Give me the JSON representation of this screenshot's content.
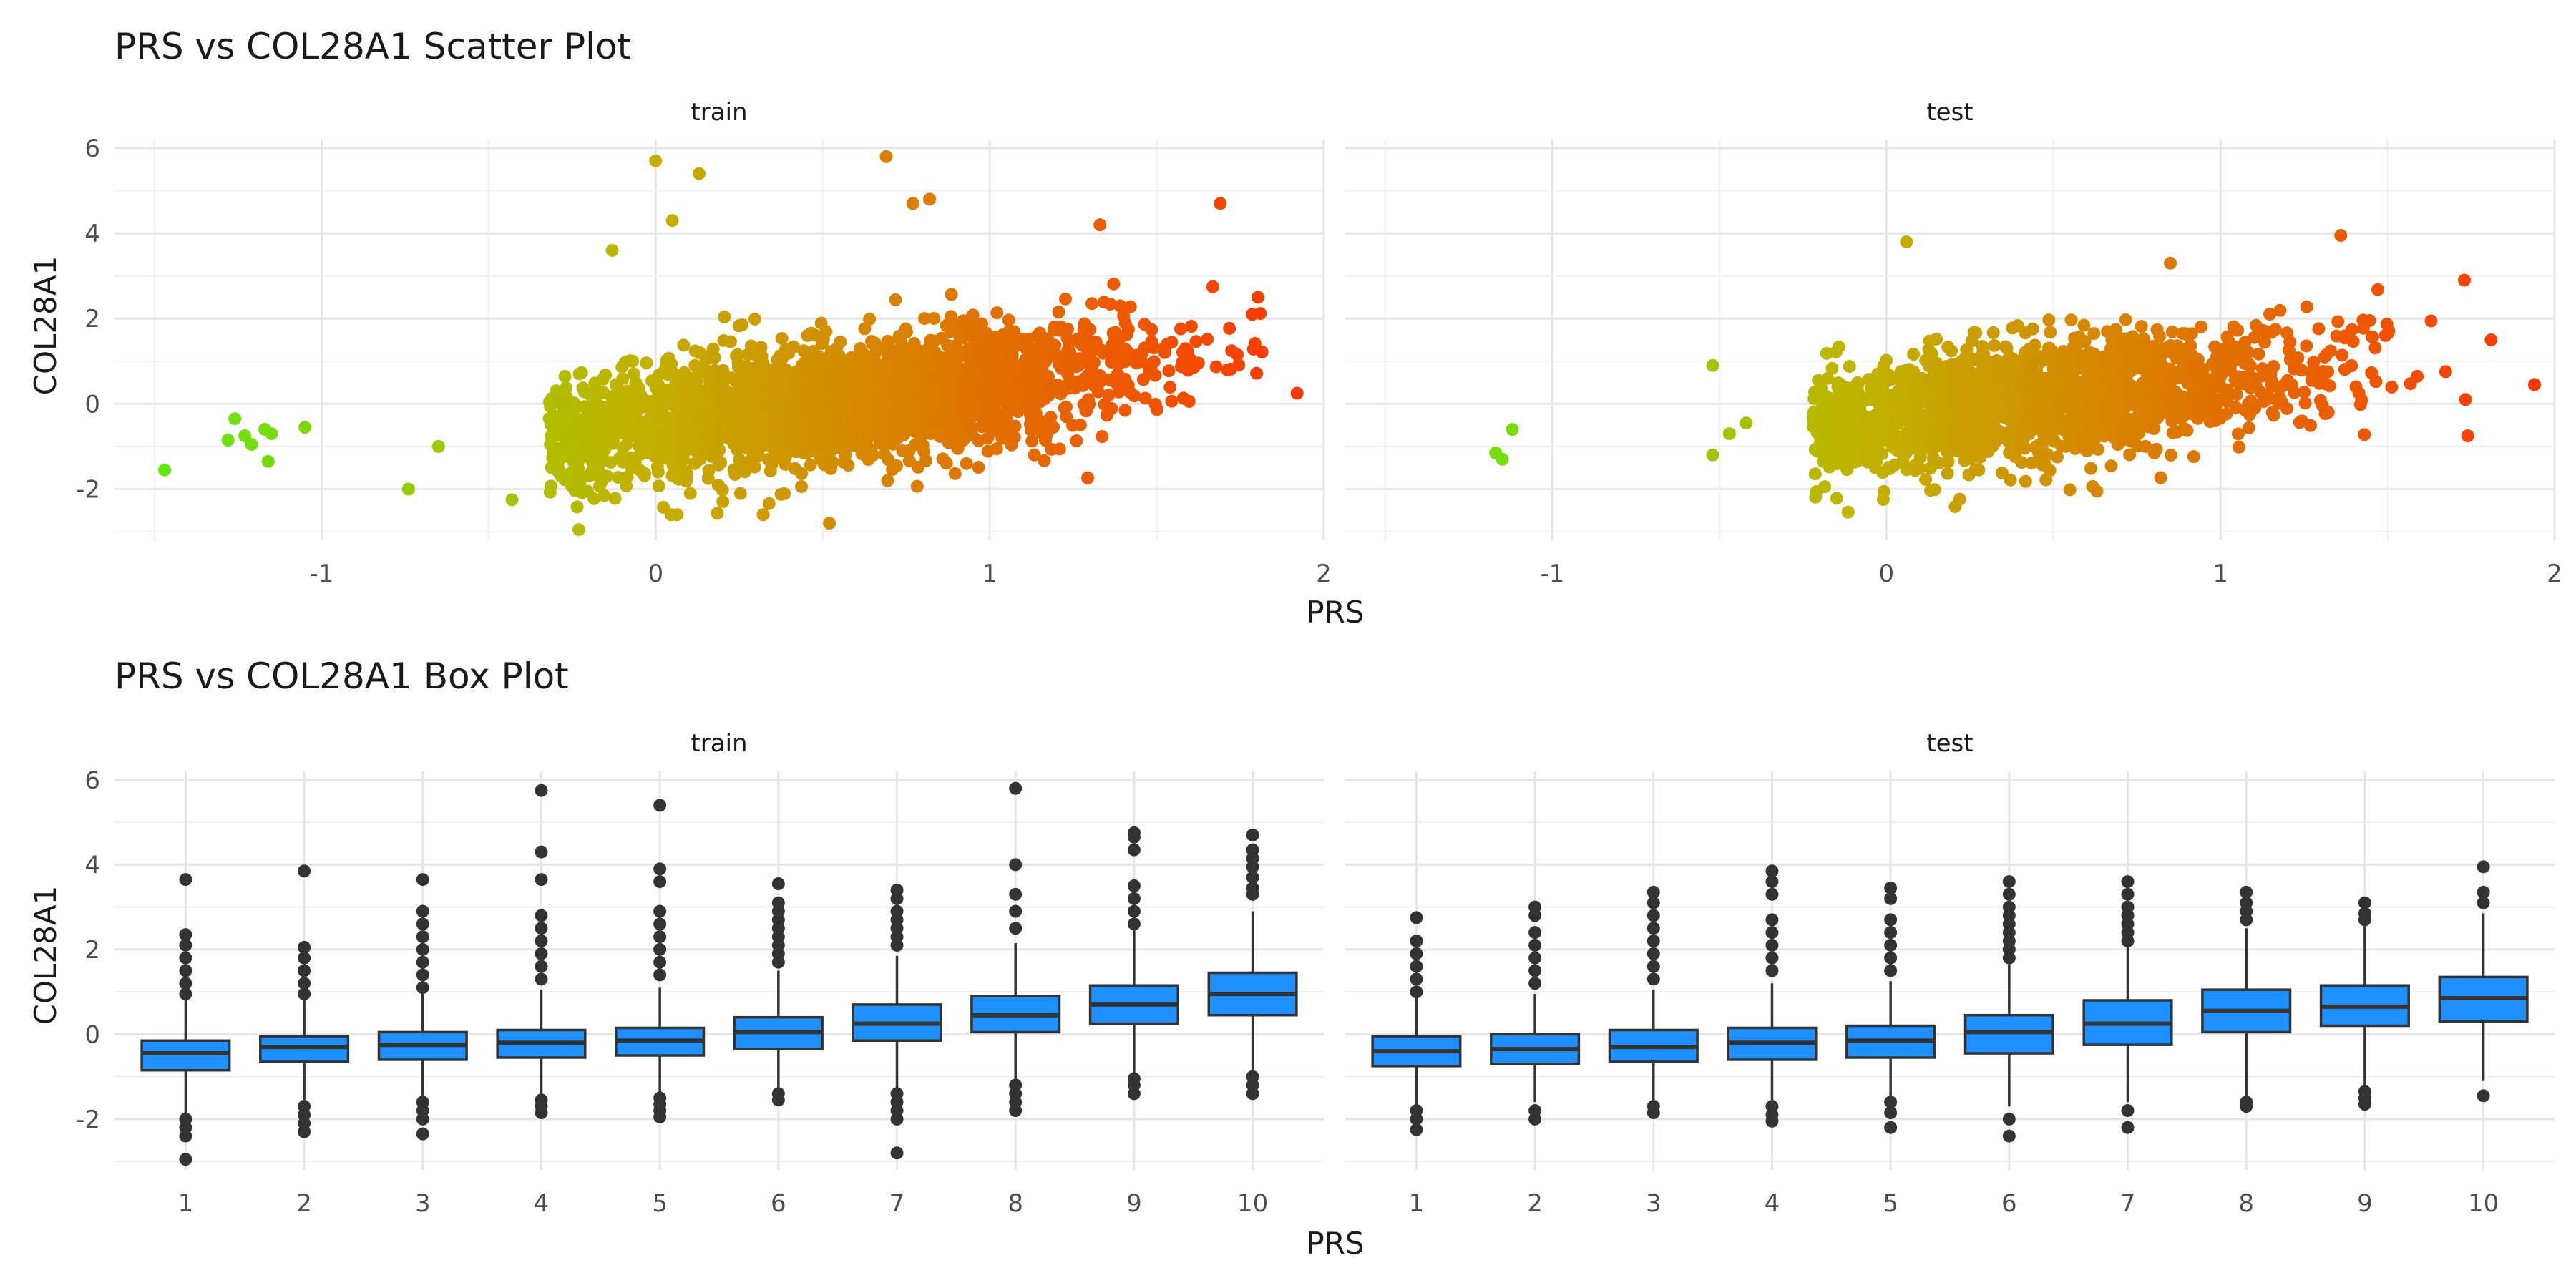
{
  "chart_data": [
    {
      "type": "scatter",
      "title": "PRS vs COL28A1 Scatter Plot",
      "xlabel": "PRS",
      "ylabel": "COL28A1",
      "xlim": [
        -1.62,
        2.0
      ],
      "ylim": [
        -3.2,
        6.2
      ],
      "x_ticks": [
        -1,
        0,
        1,
        2
      ],
      "y_ticks": [
        -2,
        0,
        2,
        4,
        6
      ],
      "grid": true,
      "color_scale": {
        "low": "#55ee11",
        "mid": "#c0b400",
        "high": "#ff3300"
      },
      "facets": [
        {
          "label": "train",
          "bulk": {
            "n": 2600,
            "x_mean": 0.55,
            "x_sd": 0.45,
            "x_min": -0.32,
            "x_max": 1.82,
            "y_intercept": -0.45,
            "y_slope": 1.0,
            "y_sd": 0.75
          },
          "points": [
            {
              "x": -1.47,
              "y": -1.55
            },
            {
              "x": -1.28,
              "y": -0.85
            },
            {
              "x": -1.26,
              "y": -0.35
            },
            {
              "x": -1.23,
              "y": -0.75
            },
            {
              "x": -1.21,
              "y": -0.95
            },
            {
              "x": -1.17,
              "y": -0.6
            },
            {
              "x": -1.16,
              "y": -1.35
            },
            {
              "x": -1.15,
              "y": -0.7
            },
            {
              "x": -1.05,
              "y": -0.55
            },
            {
              "x": -0.74,
              "y": -2.0
            },
            {
              "x": -0.65,
              "y": -1.0
            },
            {
              "x": -0.43,
              "y": -2.25
            },
            {
              "x": -0.23,
              "y": -2.95
            },
            {
              "x": 0.0,
              "y": 5.7
            },
            {
              "x": 0.13,
              "y": 5.4
            },
            {
              "x": 0.69,
              "y": 5.8
            },
            {
              "x": 0.52,
              "y": -2.8
            },
            {
              "x": 0.82,
              "y": 4.8
            },
            {
              "x": 0.77,
              "y": 4.7
            },
            {
              "x": 1.33,
              "y": 4.2
            },
            {
              "x": 1.69,
              "y": 4.7
            },
            {
              "x": 1.92,
              "y": 0.25
            },
            {
              "x": -0.13,
              "y": 3.6
            },
            {
              "x": 0.05,
              "y": 4.3
            }
          ]
        },
        {
          "label": "test",
          "bulk": {
            "n": 1700,
            "x_mean": 0.45,
            "x_sd": 0.42,
            "x_min": -0.22,
            "x_max": 1.78,
            "y_intercept": -0.3,
            "y_slope": 0.9,
            "y_sd": 0.75
          },
          "points": [
            {
              "x": -1.17,
              "y": -1.15
            },
            {
              "x": -1.15,
              "y": -1.3
            },
            {
              "x": -1.12,
              "y": -0.6
            },
            {
              "x": -0.52,
              "y": 0.9
            },
            {
              "x": -0.52,
              "y": -1.2
            },
            {
              "x": -0.47,
              "y": -0.7
            },
            {
              "x": -0.42,
              "y": -0.45
            },
            {
              "x": 1.36,
              "y": 3.95
            },
            {
              "x": 1.94,
              "y": 0.45
            },
            {
              "x": 1.81,
              "y": 1.5
            },
            {
              "x": 1.73,
              "y": 2.9
            },
            {
              "x": 1.74,
              "y": -0.75
            },
            {
              "x": 0.06,
              "y": 3.8
            },
            {
              "x": 0.85,
              "y": 3.3
            },
            {
              "x": 0.63,
              "y": -2.05
            }
          ]
        }
      ]
    },
    {
      "type": "box",
      "title": "PRS vs COL28A1 Box Plot",
      "xlabel": "PRS",
      "ylabel": "COL28A1",
      "categories": [
        "1",
        "2",
        "3",
        "4",
        "5",
        "6",
        "7",
        "8",
        "9",
        "10"
      ],
      "ylim": [
        -3.2,
        6.2
      ],
      "y_ticks": [
        -2,
        0,
        2,
        4,
        6
      ],
      "grid": true,
      "box_color": "#1e90ff",
      "facets": [
        {
          "label": "train",
          "boxes": [
            {
              "q1": -0.85,
              "median": -0.45,
              "q3": -0.15,
              "whisker_low": -1.85,
              "whisker_high": 0.85,
              "outliers": [
                3.65,
                2.35,
                2.1,
                1.8,
                1.5,
                1.2,
                0.95,
                -2.0,
                -2.2,
                -2.4,
                -2.95
              ]
            },
            {
              "q1": -0.65,
              "median": -0.3,
              "q3": -0.05,
              "whisker_low": -1.55,
              "whisker_high": 0.85,
              "outliers": [
                3.85,
                2.05,
                1.8,
                1.5,
                1.2,
                0.95,
                -1.7,
                -1.9,
                -2.1,
                -2.3
              ]
            },
            {
              "q1": -0.6,
              "median": -0.25,
              "q3": 0.05,
              "whisker_low": -1.5,
              "whisker_high": 0.95,
              "outliers": [
                3.65,
                2.9,
                2.6,
                2.3,
                2.0,
                1.7,
                1.4,
                1.1,
                -1.6,
                -1.8,
                -2.0,
                -2.35
              ]
            },
            {
              "q1": -0.55,
              "median": -0.2,
              "q3": 0.1,
              "whisker_low": -1.45,
              "whisker_high": 1.05,
              "outliers": [
                5.75,
                4.3,
                3.65,
                2.8,
                2.5,
                2.2,
                1.9,
                1.6,
                1.3,
                -1.55,
                -1.7,
                -1.85
              ]
            },
            {
              "q1": -0.5,
              "median": -0.15,
              "q3": 0.15,
              "whisker_low": -1.4,
              "whisker_high": 1.1,
              "outliers": [
                5.4,
                3.9,
                3.6,
                2.9,
                2.6,
                2.3,
                2.0,
                1.7,
                1.4,
                -1.5,
                -1.65,
                -1.8,
                -1.95
              ]
            },
            {
              "q1": -0.35,
              "median": 0.05,
              "q3": 0.4,
              "whisker_low": -1.35,
              "whisker_high": 1.5,
              "outliers": [
                3.55,
                3.1,
                2.9,
                2.7,
                2.5,
                2.3,
                2.1,
                1.9,
                1.7,
                -1.4,
                -1.55
              ]
            },
            {
              "q1": -0.15,
              "median": 0.25,
              "q3": 0.7,
              "whisker_low": -1.3,
              "whisker_high": 1.85,
              "outliers": [
                3.4,
                3.2,
                2.9,
                2.7,
                2.5,
                2.3,
                2.1,
                -1.4,
                -1.6,
                -1.8,
                -2.0,
                -2.8
              ]
            },
            {
              "q1": 0.05,
              "median": 0.45,
              "q3": 0.9,
              "whisker_low": -1.1,
              "whisker_high": 2.15,
              "outliers": [
                5.8,
                4.0,
                3.3,
                2.9,
                2.5,
                -1.2,
                -1.4,
                -1.6,
                -1.8
              ]
            },
            {
              "q1": 0.25,
              "median": 0.7,
              "q3": 1.15,
              "whisker_low": -0.95,
              "whisker_high": 2.45,
              "outliers": [
                4.75,
                4.65,
                4.35,
                3.5,
                3.2,
                2.9,
                2.6,
                -1.05,
                -1.2,
                -1.4
              ]
            },
            {
              "q1": 0.45,
              "median": 0.95,
              "q3": 1.45,
              "whisker_low": -0.9,
              "whisker_high": 2.9,
              "outliers": [
                4.7,
                4.35,
                4.15,
                3.95,
                3.7,
                3.45,
                3.3,
                -1.0,
                -1.2,
                -1.4
              ]
            }
          ]
        },
        {
          "label": "test",
          "boxes": [
            {
              "q1": -0.75,
              "median": -0.4,
              "q3": -0.05,
              "whisker_low": -1.65,
              "whisker_high": 0.9,
              "outliers": [
                2.75,
                2.2,
                1.9,
                1.6,
                1.3,
                1.0,
                -1.8,
                -2.0,
                -2.25
              ]
            },
            {
              "q1": -0.7,
              "median": -0.35,
              "q3": 0.0,
              "whisker_low": -1.6,
              "whisker_high": 0.95,
              "outliers": [
                3.0,
                2.8,
                2.4,
                2.1,
                1.8,
                1.5,
                1.2,
                -1.8,
                -2.0
              ]
            },
            {
              "q1": -0.65,
              "median": -0.3,
              "q3": 0.1,
              "whisker_low": -1.55,
              "whisker_high": 1.05,
              "outliers": [
                3.35,
                3.1,
                2.8,
                2.5,
                2.2,
                1.9,
                1.6,
                1.3,
                -1.7,
                -1.85
              ]
            },
            {
              "q1": -0.6,
              "median": -0.2,
              "q3": 0.15,
              "whisker_low": -1.55,
              "whisker_high": 1.2,
              "outliers": [
                3.85,
                3.6,
                3.3,
                2.7,
                2.4,
                2.1,
                1.8,
                1.5,
                -1.7,
                -1.9,
                -2.05
              ]
            },
            {
              "q1": -0.55,
              "median": -0.15,
              "q3": 0.2,
              "whisker_low": -1.5,
              "whisker_high": 1.25,
              "outliers": [
                3.45,
                3.2,
                2.7,
                2.4,
                2.1,
                1.8,
                1.5,
                -1.6,
                -1.85,
                -2.2
              ]
            },
            {
              "q1": -0.45,
              "median": 0.05,
              "q3": 0.45,
              "whisker_low": -1.7,
              "whisker_high": 1.65,
              "outliers": [
                3.6,
                3.3,
                3.0,
                2.8,
                2.6,
                2.4,
                2.2,
                2.0,
                1.8,
                -2.0,
                -2.4
              ]
            },
            {
              "q1": -0.25,
              "median": 0.25,
              "q3": 0.8,
              "whisker_low": -1.6,
              "whisker_high": 2.1,
              "outliers": [
                3.6,
                3.3,
                3.0,
                2.8,
                2.6,
                2.4,
                2.2,
                -1.8,
                -2.2
              ]
            },
            {
              "q1": 0.05,
              "median": 0.55,
              "q3": 1.05,
              "whisker_low": -1.5,
              "whisker_high": 2.5,
              "outliers": [
                3.35,
                3.1,
                2.9,
                2.7,
                -1.6,
                -1.7
              ]
            },
            {
              "q1": 0.2,
              "median": 0.65,
              "q3": 1.15,
              "whisker_low": -1.2,
              "whisker_high": 2.55,
              "outliers": [
                3.1,
                2.85,
                2.7,
                -1.35,
                -1.5,
                -1.65
              ]
            },
            {
              "q1": 0.3,
              "median": 0.85,
              "q3": 1.35,
              "whisker_low": -1.1,
              "whisker_high": 2.85,
              "outliers": [
                3.95,
                3.35,
                3.1,
                -1.45
              ]
            }
          ]
        }
      ]
    }
  ]
}
